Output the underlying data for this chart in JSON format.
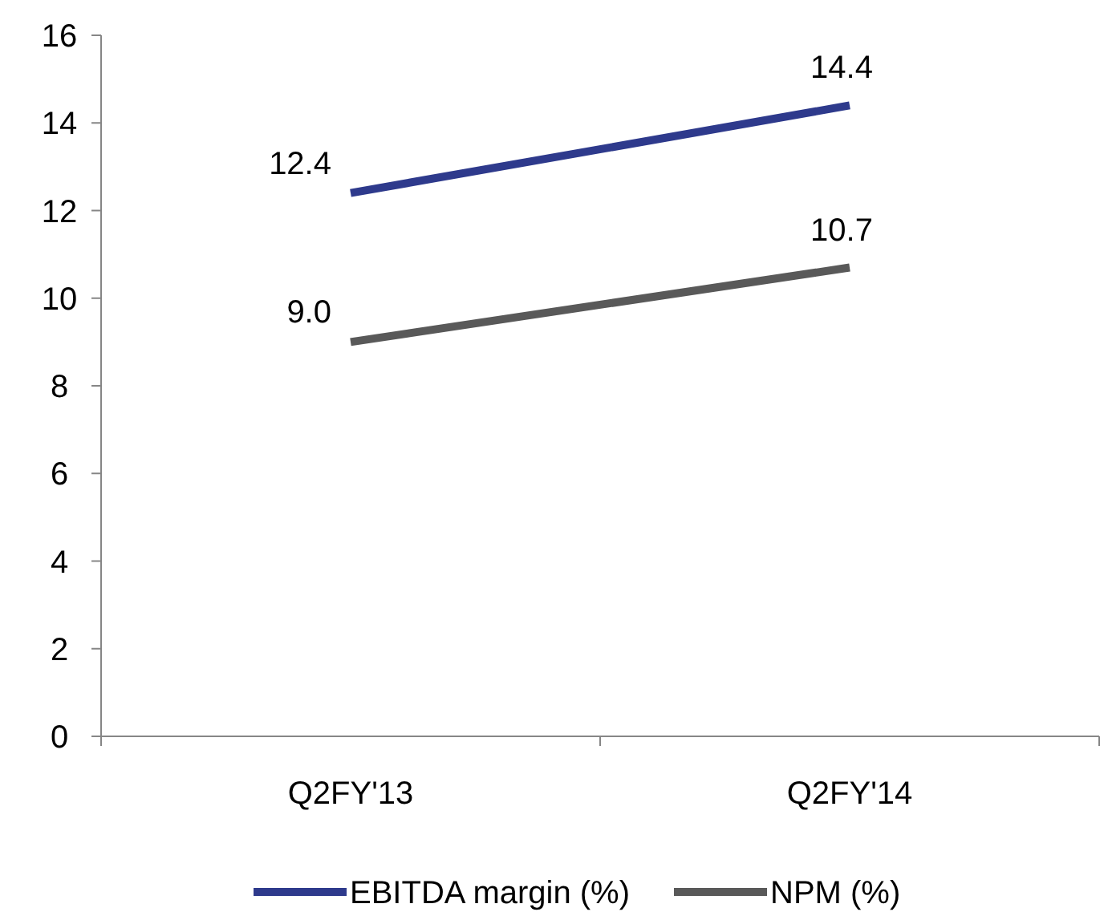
{
  "chart_data": {
    "type": "line",
    "categories": [
      "Q2FY'13",
      "Q2FY'14"
    ],
    "series": [
      {
        "name": "EBITDA margin (%)",
        "color": "#2e3a8c",
        "values": [
          12.4,
          14.4
        ],
        "value_labels": [
          "12.4",
          "14.4"
        ]
      },
      {
        "name": "NPM (%)",
        "color": "#595959",
        "values": [
          9.0,
          10.7
        ],
        "value_labels": [
          "9.0",
          "10.7"
        ]
      }
    ],
    "ylim": [
      0,
      16
    ],
    "yticks": [
      0,
      2,
      4,
      6,
      8,
      10,
      12,
      14,
      16
    ],
    "grid": false,
    "legend": "bottom",
    "marker": "none",
    "line_style": "solid"
  }
}
